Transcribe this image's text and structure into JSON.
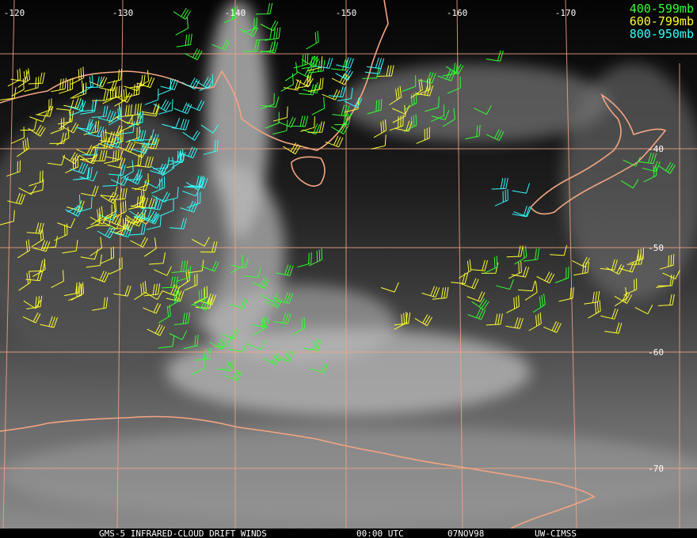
{
  "map": {
    "longitude_labels": [
      "-120",
      "-130",
      "-140",
      "-150",
      "-160",
      "-170"
    ],
    "latitude_labels": [
      "-40",
      "-50",
      "-60",
      "-70"
    ],
    "legend": [
      {
        "label": "400-599mb",
        "color": "#33ff33"
      },
      {
        "label": "600-799mb",
        "color": "#ffff33"
      },
      {
        "label": "800-950mb",
        "color": "#33ffff"
      }
    ],
    "footer": {
      "title": "GMS-5 INFRARED-CLOUD DRIFT WINDS",
      "time": "00:00 UTC",
      "date": "07NOV98",
      "source": "UW-CIMSS"
    }
  }
}
